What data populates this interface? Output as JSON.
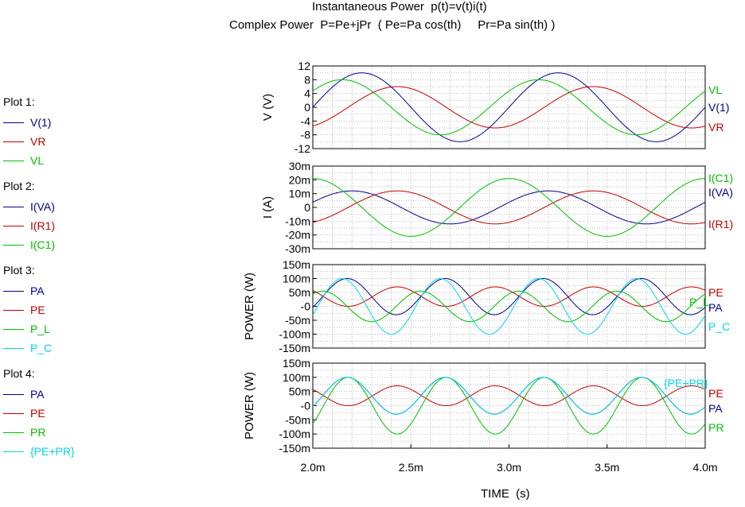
{
  "title_line1": "Instantaneous Power  p(t)=v(t)i(t)",
  "title_line2": "Complex Power  P=Pe+jPr  ( Pe=Pa cos(th)     Pr=Pa sin(th) )",
  "colors": {
    "blue": "#00008c",
    "red": "#c00000",
    "green": "#00c000",
    "cyan": "#00d8e8",
    "grid": "#a0a0a0"
  },
  "legend": [
    {
      "title": "Plot 1:",
      "items": [
        {
          "label": "V(1)",
          "color": "blue"
        },
        {
          "label": "VR",
          "color": "red"
        },
        {
          "label": "VL",
          "color": "green"
        }
      ]
    },
    {
      "title": "Plot 2:",
      "items": [
        {
          "label": "I(VA)",
          "color": "blue"
        },
        {
          "label": "I(R1)",
          "color": "red"
        },
        {
          "label": "I(C1)",
          "color": "green"
        }
      ]
    },
    {
      "title": "Plot 3:",
      "items": [
        {
          "label": "PA",
          "color": "blue"
        },
        {
          "label": "PE",
          "color": "red"
        },
        {
          "label": "P_L",
          "color": "green"
        },
        {
          "label": "P_C",
          "color": "cyan"
        }
      ]
    },
    {
      "title": "Plot 4:",
      "items": [
        {
          "label": "PA",
          "color": "blue"
        },
        {
          "label": "PE",
          "color": "red"
        },
        {
          "label": "PR",
          "color": "green"
        },
        {
          "label": "{PE+PR}",
          "color": "cyan"
        }
      ]
    }
  ],
  "xaxis": {
    "label": "TIME  (s)",
    "ticks": [
      "2.0m",
      "2.5m",
      "3.0m",
      "3.5m",
      "4.0m"
    ],
    "range_ms": [
      2.0,
      4.0
    ]
  },
  "chart_data": [
    {
      "type": "line",
      "ylabel": "V  (V)",
      "ylim": [
        -12,
        12
      ],
      "yticks": [
        "12",
        "8",
        "4",
        "0",
        "-4",
        "-8",
        "-12"
      ],
      "x_unit": "ms",
      "period_ms": 1.0,
      "series": [
        {
          "name": "V(1)",
          "color": "blue",
          "amplitude": 10.0,
          "peak_time_ms": 2.25,
          "end_label": "V(1)"
        },
        {
          "name": "VR",
          "color": "red",
          "amplitude": 6.0,
          "peak_time_ms": 2.43,
          "end_label": "VR"
        },
        {
          "name": "VL",
          "color": "green",
          "amplitude": 8.0,
          "peak_time_ms": 2.15,
          "end_label": "VL"
        }
      ]
    },
    {
      "type": "line",
      "ylabel": "I  (A)",
      "ylim": [
        -30,
        30
      ],
      "yticks": [
        "30m",
        "20m",
        "10m",
        "0",
        "-10m",
        "-20m",
        "-30m"
      ],
      "x_unit": "ms",
      "period_ms": 1.0,
      "series": [
        {
          "name": "I(VA)",
          "color": "blue",
          "amplitude": 12.0,
          "peak_time_ms": 2.2,
          "end_label": "I(VA)"
        },
        {
          "name": "I(R1)",
          "color": "red",
          "amplitude": 12.0,
          "peak_time_ms": 2.43,
          "end_label": "I(R1)"
        },
        {
          "name": "I(C1)",
          "color": "green",
          "amplitude": 21.0,
          "peak_time_ms": 2.0,
          "end_label": "I(C1)"
        }
      ]
    },
    {
      "type": "line",
      "ylabel": "POWER  (W)",
      "ylim": [
        -150,
        150
      ],
      "yticks": [
        "150m",
        "100m",
        "50m",
        "-0",
        "-50m",
        "-100m",
        "-150m"
      ],
      "x_unit": "ms",
      "period_ms": 0.5,
      "series": [
        {
          "name": "PA",
          "color": "blue",
          "offset": 35,
          "amplitude": 65,
          "peak_time_ms": 2.175,
          "end_label": "PA"
        },
        {
          "name": "PE",
          "color": "red",
          "offset": 35,
          "amplitude": 35,
          "peak_time_ms": 2.43,
          "end_label": "PE"
        },
        {
          "name": "P_L",
          "color": "green",
          "offset": 0,
          "amplitude": 55,
          "peak_time_ms": 2.55,
          "end_label": "P_L"
        },
        {
          "name": "P_C",
          "color": "cyan",
          "offset": 0,
          "amplitude": 100,
          "peak_time_ms": 2.15,
          "end_label": "P_C"
        }
      ]
    },
    {
      "type": "line",
      "ylabel": "POWER  (W)",
      "ylim": [
        -150,
        150
      ],
      "yticks": [
        "150m",
        "100m",
        "50m",
        "-0",
        "-50m",
        "-100m",
        "-150m"
      ],
      "x_unit": "ms",
      "period_ms": 0.5,
      "series": [
        {
          "name": "PA",
          "color": "blue",
          "offset": 35,
          "amplitude": 65,
          "peak_time_ms": 2.175,
          "end_label": "PA"
        },
        {
          "name": "PE",
          "color": "red",
          "offset": 35,
          "amplitude": 35,
          "peak_time_ms": 2.43,
          "end_label": "PE"
        },
        {
          "name": "PR",
          "color": "green",
          "offset": 0,
          "amplitude": 100,
          "peak_time_ms": 2.18,
          "end_label": "PR"
        },
        {
          "name": "{PE+PR}",
          "color": "cyan",
          "offset": 35,
          "amplitude": 65,
          "peak_time_ms": 2.175,
          "end_label": "{PE+PR}"
        }
      ]
    }
  ]
}
